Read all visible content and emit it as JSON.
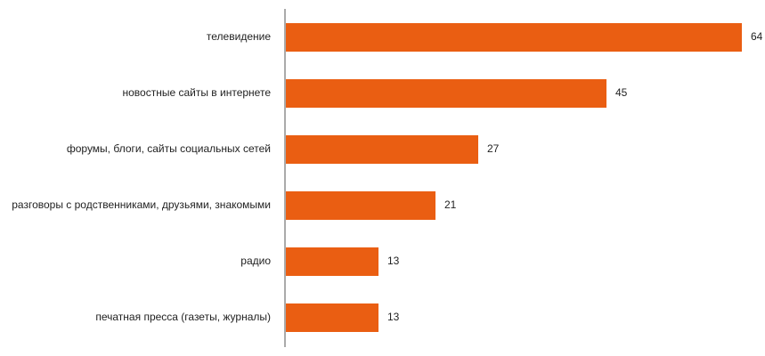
{
  "chart_data": {
    "type": "bar",
    "orientation": "horizontal",
    "categories": [
      "телевидение",
      "новостные сайты в интернете",
      "форумы, блоги, сайты социальных сетей",
      "разговоры с родственниками, друзьями, знакомыми",
      "радио",
      "печатная пресса (газеты, журналы)"
    ],
    "values": [
      64,
      45,
      27,
      21,
      13,
      13
    ],
    "value_labels": [
      "64",
      "45",
      "27",
      "21",
      "13",
      "13"
    ],
    "title": "",
    "xlabel": "",
    "ylabel": "",
    "xlim": [
      0,
      64
    ],
    "grid": false,
    "legend": "none",
    "bar_color": "#ea5e12",
    "axis_color": "#555555"
  }
}
